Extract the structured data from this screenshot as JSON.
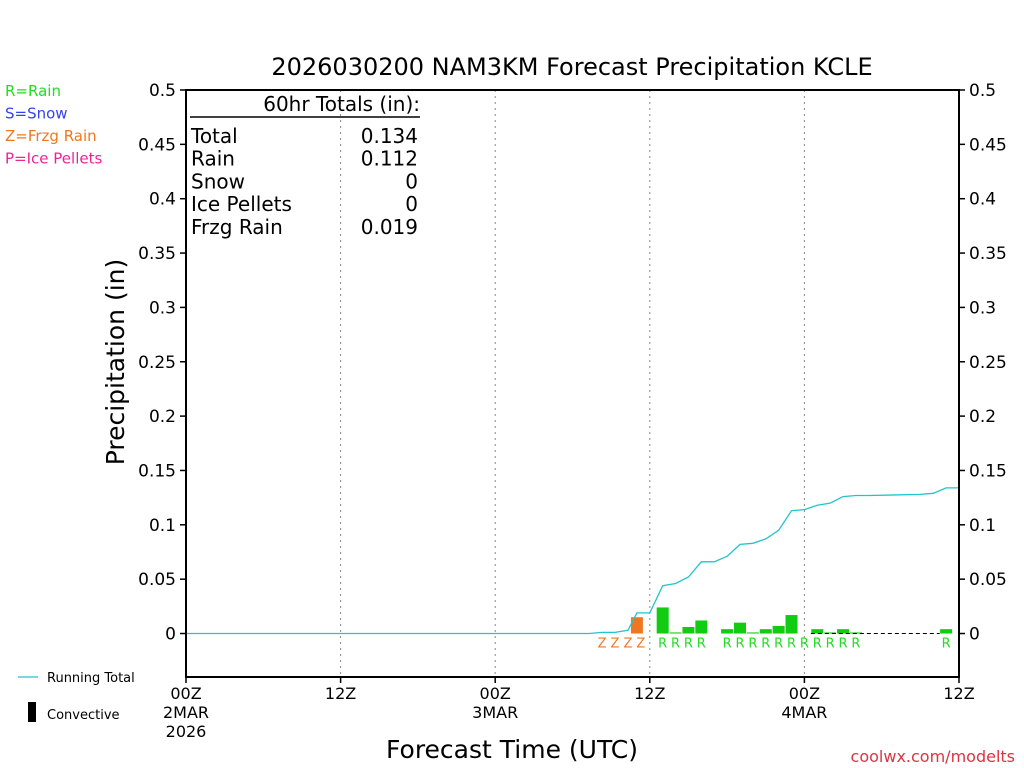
{
  "chart_data": {
    "type": "bar",
    "title": "2026030200 NAM3KM Forecast Precipitation KCLE",
    "xlabel": "Forecast Time (UTC)",
    "ylabel": "Precipitation (in)",
    "ylim": [
      -0.04,
      0.5
    ],
    "xlim": [
      0,
      60
    ],
    "yticks": [
      "0.5",
      "0.45",
      "0.4",
      "0.35",
      "0.3",
      "0.25",
      "0.2",
      "0.15",
      "0.1",
      "0.05",
      "0"
    ],
    "ytick_values": [
      0.5,
      0.45,
      0.4,
      0.35,
      0.3,
      0.25,
      0.2,
      0.15,
      0.1,
      0.05,
      0
    ],
    "xticks": [
      {
        "hour": 0,
        "lines": [
          "00Z",
          "2MAR",
          "2026"
        ]
      },
      {
        "hour": 12,
        "lines": [
          "12Z"
        ]
      },
      {
        "hour": 24,
        "lines": [
          "00Z",
          "3MAR"
        ]
      },
      {
        "hour": 36,
        "lines": [
          "12Z"
        ]
      },
      {
        "hour": 48,
        "lines": [
          "00Z",
          "4MAR"
        ]
      },
      {
        "hour": 60,
        "lines": [
          "12Z"
        ]
      }
    ],
    "vgrid_hours": [
      12,
      24,
      36,
      48
    ],
    "legend": {
      "type_keys": [
        {
          "text": "R=Rain",
          "color": "#22dd22"
        },
        {
          "text": "S=Snow",
          "color": "#3344ee"
        },
        {
          "text": "Z=Frzg Rain",
          "color": "#ee7722"
        },
        {
          "text": "P=Ice Pellets",
          "color": "#ee2299"
        }
      ],
      "running_total_label": "Running Total",
      "convective_label": "Convective"
    },
    "totals": {
      "header": "60hr Totals (in):",
      "rows": [
        {
          "label": "Total",
          "value": "0.134"
        },
        {
          "label": "Rain",
          "value": "0.112"
        },
        {
          "label": "Snow",
          "value": "0"
        },
        {
          "label": "Ice Pellets",
          "value": "0"
        },
        {
          "label": "Frzg Rain",
          "value": "0.019"
        }
      ]
    },
    "series": [
      {
        "name": "Hourly Precipitation",
        "bars": [
          {
            "hour": 35.0,
            "value": 0.015,
            "type": "Z"
          },
          {
            "hour": 37.0,
            "value": 0.024,
            "type": "R"
          },
          {
            "hour": 38.0,
            "value": 0.001,
            "type": "R"
          },
          {
            "hour": 39.0,
            "value": 0.006,
            "type": "R"
          },
          {
            "hour": 40.0,
            "value": 0.012,
            "type": "R"
          },
          {
            "hour": 42.0,
            "value": 0.004,
            "type": "R"
          },
          {
            "hour": 43.0,
            "value": 0.01,
            "type": "R"
          },
          {
            "hour": 44.0,
            "value": 0.001,
            "type": "R"
          },
          {
            "hour": 45.0,
            "value": 0.004,
            "type": "R"
          },
          {
            "hour": 46.0,
            "value": 0.007,
            "type": "R"
          },
          {
            "hour": 47.0,
            "value": 0.017,
            "type": "R"
          },
          {
            "hour": 49.0,
            "value": 0.004,
            "type": "R"
          },
          {
            "hour": 50.0,
            "value": 0.001,
            "type": "R"
          },
          {
            "hour": 51.0,
            "value": 0.004,
            "type": "R"
          },
          {
            "hour": 52.0,
            "value": 0.001,
            "type": "R"
          },
          {
            "hour": 59.0,
            "value": 0.004,
            "type": "R"
          }
        ]
      },
      {
        "name": "Running Total",
        "color": "#22c4cc",
        "points": [
          [
            0,
            0
          ],
          [
            31.3,
            0.0
          ],
          [
            32.3,
            0.001
          ],
          [
            33.3,
            0.001
          ],
          [
            34.3,
            0.003
          ],
          [
            35.0,
            0.019
          ],
          [
            36.0,
            0.019
          ],
          [
            37.0,
            0.044
          ],
          [
            38.0,
            0.046
          ],
          [
            39.0,
            0.052
          ],
          [
            40.0,
            0.066
          ],
          [
            41.0,
            0.066
          ],
          [
            42.0,
            0.071
          ],
          [
            43.0,
            0.082
          ],
          [
            44.0,
            0.083
          ],
          [
            45.0,
            0.087
          ],
          [
            46.0,
            0.095
          ],
          [
            47.0,
            0.113
          ],
          [
            48.0,
            0.114
          ],
          [
            49.0,
            0.118
          ],
          [
            50.0,
            0.12
          ],
          [
            51.0,
            0.126
          ],
          [
            52.0,
            0.127
          ],
          [
            53.0,
            0.127
          ],
          [
            57.0,
            0.128
          ],
          [
            58.0,
            0.129
          ],
          [
            59.0,
            0.134
          ],
          [
            60.0,
            0.134
          ]
        ]
      }
    ],
    "type_labels": [
      {
        "hour": 32.3,
        "type": "Z"
      },
      {
        "hour": 33.3,
        "type": "Z"
      },
      {
        "hour": 34.3,
        "type": "Z"
      },
      {
        "hour": 35.3,
        "type": "Z"
      },
      {
        "hour": 37.0,
        "type": "R"
      },
      {
        "hour": 38.0,
        "type": "R"
      },
      {
        "hour": 39.0,
        "type": "R"
      },
      {
        "hour": 40.0,
        "type": "R"
      },
      {
        "hour": 42.0,
        "type": "R"
      },
      {
        "hour": 43.0,
        "type": "R"
      },
      {
        "hour": 44.0,
        "type": "R"
      },
      {
        "hour": 45.0,
        "type": "R"
      },
      {
        "hour": 46.0,
        "type": "R"
      },
      {
        "hour": 47.0,
        "type": "R"
      },
      {
        "hour": 48.0,
        "type": "R"
      },
      {
        "hour": 49.0,
        "type": "R"
      },
      {
        "hour": 50.0,
        "type": "R"
      },
      {
        "hour": 51.0,
        "type": "R"
      },
      {
        "hour": 52.0,
        "type": "R"
      },
      {
        "hour": 59.0,
        "type": "R"
      }
    ],
    "type_colors": {
      "R": "#22dd22",
      "S": "#3344ee",
      "Z": "#ee7722",
      "P": "#ee2299"
    },
    "bar_colors": {
      "R": "#11cc11",
      "Z": "#ee7722",
      "S": "#3344ee",
      "P": "#ee2299"
    },
    "credit": "coolwx.com/modelts"
  }
}
